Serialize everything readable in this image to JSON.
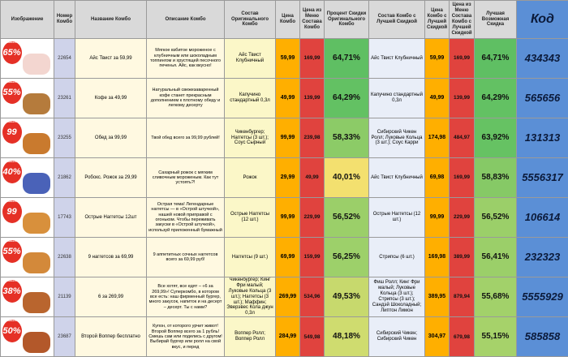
{
  "headers": {
    "image": "Изображение",
    "number": "Номер Комбо",
    "name": "Название Комбо",
    "description": "Описание Комбо",
    "orig_contents": "Состав Оригинального Комбо",
    "price": "Цена Комбо",
    "menu_price": "Цена из Меню Состава Комбо",
    "orig_discount": "Процент Скидки Оригинального Комбо",
    "best_contents": "Состав Комбо с Лучшей Скидкой",
    "best_price": "Цена Комбо с Лучшей Скидкой",
    "best_menu_price": "Цена из Меню Состава Комбо с Лучшей Скидкой",
    "best_discount": "Лучшая Возможная Скидка",
    "code": "Код"
  },
  "rows": [
    {
      "badge_top": "Скидка до",
      "badge": "65%",
      "badge_color": "#e53026",
      "food_color": "#f3d6d0",
      "number": "22654",
      "name": "Айс Твист за 59,99",
      "description": "Мягкое взбитое мороженое с клубничным или шоколадным топпингом и хрустящей песочного печенья. Айс, как вкусно!",
      "orig": "Айс Твист Клубничный",
      "price": "59,99",
      "menu": "169,99",
      "orig_pct": "64,71%",
      "orig_pct_color": "#5fbf63",
      "best": "Айс Твист Клубничный",
      "best_price": "59,99",
      "best_menu": "169,99",
      "best_pct": "64,71%",
      "best_pct_color": "#5fbf63",
      "code": "434343"
    },
    {
      "badge_top": "Скидка до",
      "badge": "55%",
      "badge_color": "#e53026",
      "food_color": "#b57b3c",
      "number": "23261",
      "name": "Кофе за 49,99",
      "description": "Натуральный свежезаваренный кофе станет прекрасным дополнением к плотному обеду и легкому десерту",
      "orig": "Капучино стандартный 0,3л",
      "price": "49,99",
      "menu": "139,99",
      "orig_pct": "64,29%",
      "orig_pct_color": "#63c163",
      "best": "Капучино стандартный 0,3л",
      "best_price": "49,99",
      "best_menu": "139,99",
      "best_pct": "64,29%",
      "best_pct_color": "#63c163",
      "code": "565656"
    },
    {
      "badge_top": "Скидка до",
      "badge": "99",
      "badge_color": "#e53026",
      "food_color": "#c97a2e",
      "number": "23255",
      "name": "Обед за 99,99",
      "description": "Твой обед всего за 99,99 рублей!",
      "orig": "Чикенбургер; Наггетсы (3 шт.); Соус Сырный",
      "price": "99,99",
      "menu": "239,98",
      "orig_pct": "58,33%",
      "orig_pct_color": "#8ccb67",
      "best": "Сибирский Чикен Ролл; Луковые Кольца (3 шт.); Соус Карри",
      "best_price": "174,98",
      "best_menu": "484,97",
      "best_pct": "63,92%",
      "best_pct_color": "#66c263",
      "code": "131313"
    },
    {
      "badge_top": "Скидка до",
      "badge": "40%",
      "badge_color": "#e53026",
      "food_color": "#4a62b8",
      "number": "21862",
      "name": "Робокс. Рожок за 29,99",
      "description": "Сахарный рожок с мягким сливочным мороженым. Как тут устоять?!",
      "orig": "Рожок",
      "price": "29,99",
      "menu": "49,99",
      "orig_pct": "40,01%",
      "orig_pct_color": "#f3e06f",
      "best": "Айс Твист Клубничный",
      "best_price": "69,98",
      "best_menu": "169,99",
      "best_pct": "58,83%",
      "best_pct_color": "#86c966",
      "code": "5556317"
    },
    {
      "badge_top": "Скидка до",
      "badge": "99",
      "badge_color": "#e53026",
      "food_color": "#d8903c",
      "number": "17743",
      "name": "Острые Наггетсы 12шт",
      "description": "Острая тема! Легендарные наггетсы — в «Острой штучкой», нашей новой приправой с огоньком. Чтобы переживать закуски в «Острой штучкой», используй приложенный бумажный",
      "orig": "Острые Наггетсы (12 шт.)",
      "price": "99,99",
      "menu": "229,99",
      "orig_pct": "56,52%",
      "orig_pct_color": "#9bcf69",
      "best": "Острые Наггетсы (12 шт.)",
      "best_price": "99,99",
      "best_menu": "229,99",
      "best_pct": "56,52%",
      "best_pct_color": "#9bcf69",
      "code": "106614"
    },
    {
      "badge_top": "Скидка до",
      "badge": "55%",
      "badge_color": "#e53026",
      "food_color": "#d3893a",
      "number": "22638",
      "name": "9 наггетсов за 69,99",
      "description": "9 аппетитных сочных наггетсов всего за 69,99 руб!",
      "orig": "Наггетсы (9 шт.)",
      "price": "69,99",
      "menu": "159,99",
      "orig_pct": "56,25%",
      "orig_pct_color": "#9dd06a",
      "best": "Стрипсы (6 шт.)",
      "best_price": "169,98",
      "best_menu": "389,99",
      "best_pct": "56,41%",
      "best_pct_color": "#9bcf69",
      "code": "232323"
    },
    {
      "badge_top": "Скидка до",
      "badge": "38%",
      "badge_color": "#e53026",
      "food_color": "#b9652e",
      "number": "21139",
      "name": "6 за 269,99",
      "description": "Все хотят, все едят – «6 за 269,99»! Суперкомбо, в котором все есть: наш фирменный бургер, много закусок, напиток и на десерт – десерт. Ты с нами?",
      "orig": "Чикенбургер; Кинг Фри малый; Луковые Кольца (3 шт.); Наггетсы (3 шт.); Маффин; Эверэвес Кола джун 0,3л",
      "price": "269,99",
      "menu": "534,96",
      "orig_pct": "49,53%",
      "orig_pct_color": "#c7d96d",
      "best": "Фиш Ролл; Кинг Фри малый; Луковые Кольца (3 шт.); Стрипсы (3 шт.); Сандэй Шоколадный; Липтон Лимон",
      "best_price": "389,95",
      "best_menu": "879,94",
      "best_pct": "55,68%",
      "best_pct_color": "#a2d16a",
      "code": "5555929"
    },
    {
      "badge_top": "Скидка до",
      "badge": "50%",
      "badge_color": "#e53026",
      "food_color": "#b3582a",
      "number": "23687",
      "name": "Второй Воппер бесплатно",
      "description": "Купон, от которого урчит живот! Второй Воппер всего за 1 рубль! Смешь сам или поделись с другом! Выбирай бургер или ролл на свой вкус, и перед",
      "orig": "Воппер Ролл; Воппер Ролл",
      "price": "284,99",
      "menu": "549,98",
      "orig_pct": "48,18%",
      "orig_pct_color": "#cfdc6f",
      "best": "Сибирский Чикен; Сибирский Чикен",
      "best_price": "304,97",
      "best_menu": "679,98",
      "best_pct": "55,15%",
      "best_pct_color": "#a6d26a",
      "code": "585858"
    }
  ]
}
